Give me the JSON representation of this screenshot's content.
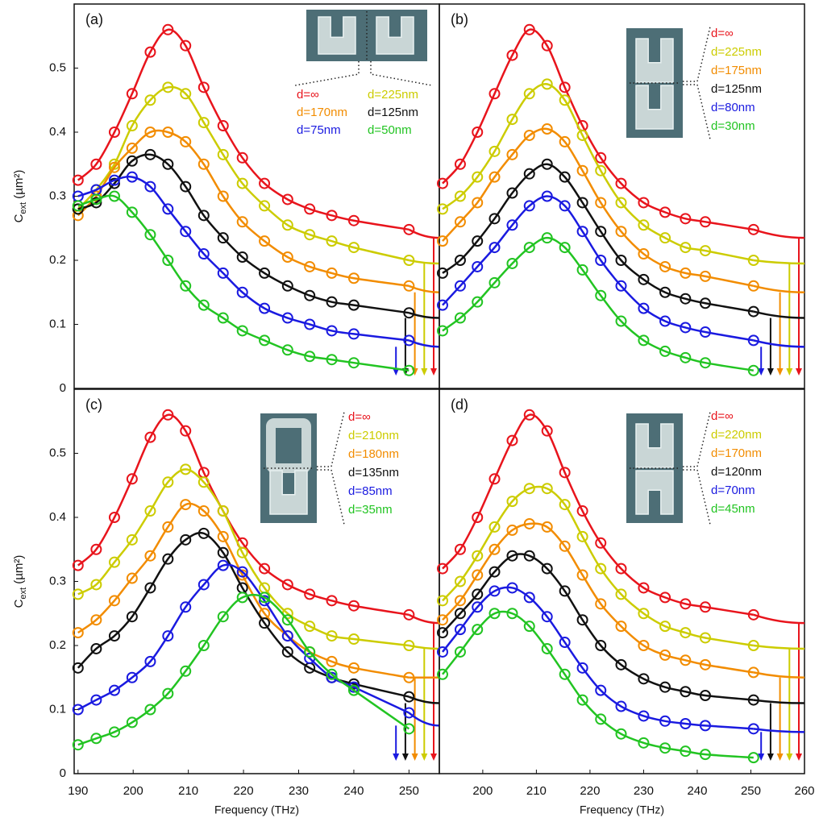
{
  "chart_data": [
    {
      "type": "line",
      "label": "(a)",
      "xlim": [
        189.3,
        255.5
      ],
      "ylim": [
        0,
        0.6
      ],
      "yticks": [
        0,
        0.1,
        0.2,
        0.3,
        0.4,
        0.5
      ],
      "ylabel": {
        "main": "C",
        "sub": "ext",
        "unit": " (µm²)"
      },
      "legend_columns": 2,
      "x": [
        190,
        193.3,
        196.6,
        199.8,
        203.1,
        206.3,
        209.5,
        212.8,
        216.3,
        219.8,
        223.8,
        228,
        232,
        236,
        240,
        250
      ],
      "series": [
        {
          "name": "d=∞",
          "color": "#e8141c",
          "arrow": 0.235,
          "values": [
            0.325,
            0.35,
            0.4,
            0.46,
            0.525,
            0.56,
            0.535,
            0.47,
            0.41,
            0.36,
            0.32,
            0.295,
            0.28,
            0.27,
            0.262,
            0.248
          ]
        },
        {
          "name": "d=225nm",
          "color": "#cccc00",
          "arrow": 0.195,
          "values": [
            0.28,
            0.31,
            0.35,
            0.41,
            0.45,
            0.47,
            0.46,
            0.415,
            0.365,
            0.32,
            0.285,
            0.255,
            0.24,
            0.23,
            0.22,
            0.2
          ]
        },
        {
          "name": "d=170nm",
          "color": "#f28c00",
          "arrow": 0.15,
          "values": [
            0.27,
            0.3,
            0.345,
            0.375,
            0.4,
            0.4,
            0.385,
            0.35,
            0.3,
            0.26,
            0.23,
            0.205,
            0.19,
            0.18,
            0.172,
            0.16
          ]
        },
        {
          "name": "d=125nm",
          "color": "#111111",
          "arrow": 0.11,
          "values": [
            0.28,
            0.29,
            0.32,
            0.355,
            0.365,
            0.35,
            0.315,
            0.27,
            0.235,
            0.205,
            0.18,
            0.16,
            0.145,
            0.135,
            0.13,
            0.118
          ]
        },
        {
          "name": "d=75nm",
          "color": "#1a1ae0",
          "arrow": 0.065,
          "values": [
            0.3,
            0.31,
            0.325,
            0.33,
            0.315,
            0.28,
            0.245,
            0.21,
            0.18,
            0.15,
            0.125,
            0.11,
            0.1,
            0.09,
            0.085,
            0.075
          ]
        },
        {
          "name": "d=50nm",
          "color": "#22c422",
          "values": [
            0.285,
            0.295,
            0.3,
            0.275,
            0.24,
            0.2,
            0.16,
            0.13,
            0.11,
            0.09,
            0.075,
            0.06,
            0.05,
            0.045,
            0.04,
            0.028
          ]
        }
      ]
    },
    {
      "type": "line",
      "label": "(b)",
      "xlim": [
        191.9,
        260
      ],
      "ylim": [
        0,
        0.6
      ],
      "legend_columns": 1,
      "x": [
        192.5,
        195.8,
        199,
        202.2,
        205.5,
        208.7,
        212,
        215.3,
        218.6,
        222,
        225.8,
        230,
        234,
        237.8,
        241.5,
        250.5
      ],
      "series": [
        {
          "name": "d=∞",
          "color": "#e8141c",
          "arrow": 0.235,
          "values": [
            0.32,
            0.35,
            0.4,
            0.46,
            0.52,
            0.56,
            0.535,
            0.47,
            0.41,
            0.36,
            0.32,
            0.29,
            0.275,
            0.265,
            0.26,
            0.248
          ]
        },
        {
          "name": "d=225nm",
          "color": "#cccc00",
          "arrow": 0.195,
          "values": [
            0.28,
            0.3,
            0.33,
            0.37,
            0.42,
            0.46,
            0.475,
            0.45,
            0.395,
            0.34,
            0.29,
            0.255,
            0.235,
            0.22,
            0.215,
            0.2
          ]
        },
        {
          "name": "d=175nm",
          "color": "#f28c00",
          "arrow": 0.15,
          "values": [
            0.23,
            0.26,
            0.29,
            0.33,
            0.365,
            0.395,
            0.405,
            0.385,
            0.34,
            0.29,
            0.245,
            0.21,
            0.19,
            0.18,
            0.175,
            0.16
          ]
        },
        {
          "name": "d=125nm",
          "color": "#111111",
          "arrow": 0.11,
          "values": [
            0.18,
            0.2,
            0.23,
            0.265,
            0.305,
            0.335,
            0.35,
            0.33,
            0.29,
            0.245,
            0.2,
            0.17,
            0.15,
            0.14,
            0.133,
            0.12
          ]
        },
        {
          "name": "d=80nm",
          "color": "#1a1ae0",
          "arrow": 0.065,
          "values": [
            0.13,
            0.16,
            0.19,
            0.22,
            0.255,
            0.285,
            0.3,
            0.285,
            0.245,
            0.2,
            0.16,
            0.125,
            0.105,
            0.095,
            0.088,
            0.075
          ]
        },
        {
          "name": "d=30nm",
          "color": "#22c422",
          "values": [
            0.09,
            0.11,
            0.135,
            0.165,
            0.195,
            0.22,
            0.235,
            0.22,
            0.185,
            0.145,
            0.105,
            0.075,
            0.058,
            0.048,
            0.04,
            0.028
          ]
        }
      ]
    },
    {
      "type": "line",
      "label": "(c)",
      "xlim": [
        189.3,
        255.5
      ],
      "ylim": [
        0,
        0.6
      ],
      "xticks": [
        190,
        200,
        210,
        220,
        230,
        240,
        250
      ],
      "yticks": [
        0,
        0.1,
        0.2,
        0.3,
        0.4,
        0.5
      ],
      "xlabel": "Frequency (THz)",
      "ylabel": {
        "main": "C",
        "sub": "ext",
        "unit": " (µm²)"
      },
      "legend_columns": 1,
      "x": [
        190,
        193.3,
        196.6,
        199.8,
        203.1,
        206.3,
        209.5,
        212.8,
        216.3,
        219.8,
        223.8,
        228,
        232,
        236,
        240,
        250
      ],
      "series": [
        {
          "name": "d=∞",
          "color": "#e8141c",
          "arrow": 0.235,
          "values": [
            0.325,
            0.35,
            0.4,
            0.46,
            0.525,
            0.56,
            0.535,
            0.47,
            0.41,
            0.36,
            0.32,
            0.295,
            0.28,
            0.27,
            0.262,
            0.248
          ]
        },
        {
          "name": "d=210nm",
          "color": "#cccc00",
          "arrow": 0.195,
          "values": [
            0.28,
            0.295,
            0.33,
            0.365,
            0.41,
            0.455,
            0.475,
            0.455,
            0.41,
            0.345,
            0.29,
            0.25,
            0.23,
            0.215,
            0.21,
            0.2
          ]
        },
        {
          "name": "d=180nm",
          "color": "#f28c00",
          "arrow": 0.15,
          "values": [
            0.22,
            0.24,
            0.27,
            0.305,
            0.34,
            0.385,
            0.42,
            0.41,
            0.37,
            0.31,
            0.25,
            0.215,
            0.19,
            0.175,
            0.165,
            0.15
          ]
        },
        {
          "name": "d=135nm",
          "color": "#111111",
          "arrow": 0.11,
          "values": [
            0.165,
            0.195,
            0.215,
            0.245,
            0.29,
            0.335,
            0.365,
            0.375,
            0.345,
            0.29,
            0.235,
            0.19,
            0.165,
            0.15,
            0.14,
            0.12
          ]
        },
        {
          "name": "d=85nm",
          "color": "#1a1ae0",
          "arrow": 0.075,
          "values": [
            0.1,
            0.115,
            0.13,
            0.15,
            0.175,
            0.215,
            0.26,
            0.295,
            0.325,
            0.315,
            0.27,
            0.215,
            0.18,
            0.15,
            0.135,
            0.095
          ]
        },
        {
          "name": "d=35nm",
          "color": "#22c422",
          "values": [
            0.045,
            0.055,
            0.065,
            0.08,
            0.1,
            0.125,
            0.16,
            0.2,
            0.245,
            0.275,
            0.275,
            0.24,
            0.19,
            0.155,
            0.13,
            0.07
          ]
        }
      ]
    },
    {
      "type": "line",
      "label": "(d)",
      "xlim": [
        191.9,
        260
      ],
      "ylim": [
        0,
        0.6
      ],
      "xticks": [
        200,
        210,
        220,
        230,
        240,
        250,
        260
      ],
      "xlabel": "Frequency (THz)",
      "legend_columns": 1,
      "x": [
        192.5,
        195.8,
        199,
        202.2,
        205.5,
        208.7,
        212,
        215.3,
        218.6,
        222,
        225.8,
        230,
        234,
        237.8,
        241.5,
        250.5
      ],
      "series": [
        {
          "name": "d=∞",
          "color": "#e8141c",
          "arrow": 0.235,
          "values": [
            0.32,
            0.35,
            0.4,
            0.46,
            0.52,
            0.56,
            0.535,
            0.47,
            0.41,
            0.36,
            0.32,
            0.29,
            0.275,
            0.265,
            0.26,
            0.248
          ]
        },
        {
          "name": "d=220nm",
          "color": "#cccc00",
          "arrow": 0.195,
          "values": [
            0.27,
            0.3,
            0.34,
            0.385,
            0.425,
            0.445,
            0.445,
            0.42,
            0.37,
            0.32,
            0.28,
            0.25,
            0.23,
            0.22,
            0.212,
            0.2
          ]
        },
        {
          "name": "d=170nm",
          "color": "#f28c00",
          "arrow": 0.15,
          "values": [
            0.24,
            0.27,
            0.31,
            0.35,
            0.38,
            0.39,
            0.385,
            0.355,
            0.31,
            0.265,
            0.23,
            0.2,
            0.185,
            0.177,
            0.17,
            0.158
          ]
        },
        {
          "name": "d=120nm",
          "color": "#111111",
          "arrow": 0.11,
          "values": [
            0.22,
            0.25,
            0.28,
            0.315,
            0.34,
            0.34,
            0.32,
            0.285,
            0.24,
            0.2,
            0.17,
            0.148,
            0.135,
            0.128,
            0.122,
            0.115
          ]
        },
        {
          "name": "d=70nm",
          "color": "#1a1ae0",
          "arrow": 0.065,
          "values": [
            0.19,
            0.225,
            0.26,
            0.285,
            0.29,
            0.275,
            0.245,
            0.205,
            0.165,
            0.13,
            0.105,
            0.09,
            0.082,
            0.078,
            0.075,
            0.07
          ]
        },
        {
          "name": "d=45nm",
          "color": "#22c422",
          "values": [
            0.155,
            0.19,
            0.225,
            0.25,
            0.25,
            0.23,
            0.195,
            0.155,
            0.115,
            0.085,
            0.062,
            0.048,
            0.04,
            0.035,
            0.03,
            0.025
          ]
        }
      ]
    }
  ]
}
